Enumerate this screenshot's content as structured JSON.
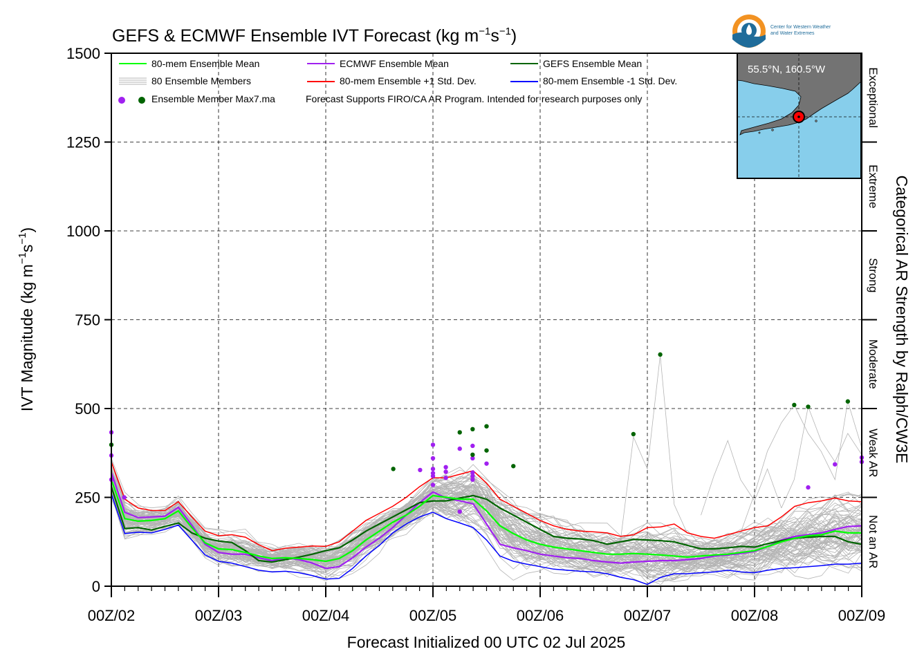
{
  "chart_data": {
    "type": "line",
    "title_main": "GEFS & ECMWF Ensemble IVT Forecast (kg m",
    "title_exp1": "−1",
    "title_mid": "s",
    "title_exp2": "−1",
    "title_end": ")",
    "xlabel": "Forecast Initialized 00 UTC 02 Jul 2025",
    "ylabel_main": "IVT Magnitude (kg m",
    "ylabel_exp1": "−1",
    "ylabel_mid": "s",
    "ylabel_exp2": "−1",
    "ylabel_end": ")",
    "right_label": "Categorical AR Strength by Ralph/CW3E",
    "ylim": [
      0,
      1500
    ],
    "xlim": [
      0,
      7
    ],
    "yticks": [
      0,
      250,
      500,
      750,
      1000,
      1250,
      1500
    ],
    "xtick_labels": [
      "00Z/02",
      "00Z/03",
      "00Z/04",
      "00Z/05",
      "00Z/06",
      "00Z/07",
      "00Z/08",
      "00Z/09"
    ],
    "grid": true,
    "categories": [
      {
        "label": "Not an AR",
        "from": 0,
        "to": 250
      },
      {
        "label": "Weak AR",
        "from": 250,
        "to": 500
      },
      {
        "label": "Moderate",
        "from": 500,
        "to": 750
      },
      {
        "label": "Strong",
        "from": 750,
        "to": 1000
      },
      {
        "label": "Extreme",
        "from": 1000,
        "to": 1250
      },
      {
        "label": "Exceptional",
        "from": 1250,
        "to": 1500
      }
    ],
    "legend": {
      "mean80": "80-mem Ensemble Mean",
      "members": "80 Ensemble Members",
      "ecmwf": "ECMWF Ensemble Mean",
      "plus": "80-mem Ensemble +1 Std. Dev.",
      "gefs": "GEFS Ensemble Mean",
      "minus": "80-mem Ensemble -1 Std. Dev.",
      "max7": "Ensemble Member Max7.ma",
      "note": "Forecast Supports FIRO/CA AR Program. Intended for research purposes only"
    },
    "colors": {
      "mean80": "#00ff00",
      "ecmwf": "#a020f0",
      "gefs": "#006400",
      "plus": "#ff0000",
      "minus": "#0000ff",
      "members": "#b4b4b4",
      "ocean": "#87ceeb",
      "land": "#737373",
      "marker": "#ff0000"
    },
    "series": [
      {
        "key": "plus",
        "name": "80-mem Ensemble +1 Std. Dev.",
        "x": [
          0,
          0.125,
          0.25,
          0.375,
          0.5,
          0.625,
          0.75,
          0.875,
          1,
          1.125,
          1.25,
          1.375,
          1.5,
          1.625,
          1.75,
          1.875,
          2,
          2.125,
          2.25,
          2.375,
          2.5,
          2.625,
          2.75,
          2.875,
          3,
          3.125,
          3.25,
          3.375,
          3.5,
          3.625,
          3.75,
          3.875,
          4,
          4.125,
          4.25,
          4.375,
          4.5,
          4.625,
          4.75,
          4.875,
          5,
          5.125,
          5.25,
          5.375,
          5.5,
          5.625,
          5.75,
          5.875,
          6,
          6.125,
          6.25,
          6.375,
          6.5,
          6.625,
          6.75,
          6.875,
          7
        ],
        "y": [
          350,
          245,
          220,
          213,
          213,
          238,
          195,
          155,
          142,
          145,
          138,
          117,
          100,
          107,
          110,
          113,
          112,
          125,
          155,
          185,
          205,
          225,
          250,
          280,
          305,
          305,
          315,
          325,
          290,
          245,
          225,
          205,
          185,
          170,
          160,
          155,
          153,
          150,
          140,
          145,
          165,
          167,
          175,
          150,
          140,
          135,
          145,
          155,
          165,
          170,
          195,
          225,
          235,
          240,
          248,
          240,
          238
        ]
      },
      {
        "key": "gefs",
        "name": "GEFS Ensemble Mean",
        "x": [
          0,
          0.125,
          0.25,
          0.375,
          0.5,
          0.625,
          0.75,
          0.875,
          1,
          1.125,
          1.25,
          1.375,
          1.5,
          1.625,
          1.75,
          1.875,
          2,
          2.125,
          2.25,
          2.375,
          2.5,
          2.625,
          2.75,
          2.875,
          3,
          3.125,
          3.25,
          3.375,
          3.5,
          3.625,
          3.75,
          3.875,
          4,
          4.125,
          4.25,
          4.375,
          4.5,
          4.625,
          4.75,
          4.875,
          5,
          5.125,
          5.25,
          5.375,
          5.5,
          5.625,
          5.75,
          5.875,
          6,
          6.125,
          6.25,
          6.375,
          6.5,
          6.625,
          6.75,
          6.875,
          7
        ],
        "y": [
          280,
          162,
          165,
          158,
          168,
          178,
          150,
          135,
          127,
          123,
          100,
          72,
          68,
          75,
          82,
          90,
          100,
          108,
          130,
          155,
          175,
          195,
          215,
          235,
          240,
          240,
          248,
          255,
          245,
          220,
          200,
          180,
          160,
          140,
          135,
          133,
          128,
          118,
          125,
          132,
          130,
          128,
          125,
          115,
          105,
          105,
          108,
          112,
          110,
          120,
          128,
          135,
          138,
          140,
          140,
          125,
          118
        ]
      },
      {
        "key": "mean80",
        "name": "80-mem Ensemble Mean",
        "x": [
          0,
          0.125,
          0.25,
          0.375,
          0.5,
          0.625,
          0.75,
          0.875,
          1,
          1.125,
          1.25,
          1.375,
          1.5,
          1.625,
          1.75,
          1.875,
          2,
          2.125,
          2.25,
          2.375,
          2.5,
          2.625,
          2.75,
          2.875,
          3,
          3.125,
          3.25,
          3.375,
          3.5,
          3.625,
          3.75,
          3.875,
          4,
          4.125,
          4.25,
          4.375,
          4.5,
          4.625,
          4.75,
          4.875,
          5,
          5.125,
          5.25,
          5.375,
          5.5,
          5.625,
          5.75,
          5.875,
          6,
          6.125,
          6.25,
          6.375,
          6.5,
          6.625,
          6.75,
          6.875,
          7
        ],
        "y": [
          300,
          190,
          183,
          185,
          190,
          212,
          165,
          122,
          105,
          103,
          95,
          85,
          78,
          80,
          78,
          75,
          70,
          78,
          100,
          130,
          155,
          180,
          200,
          225,
          255,
          250,
          245,
          245,
          212,
          170,
          148,
          130,
          118,
          110,
          105,
          100,
          95,
          90,
          90,
          92,
          90,
          88,
          85,
          82,
          85,
          88,
          90,
          95,
          100,
          112,
          125,
          135,
          142,
          145,
          155,
          150,
          150
        ]
      },
      {
        "key": "ecmwf",
        "name": "ECMWF Ensemble Mean",
        "x": [
          0,
          0.125,
          0.25,
          0.375,
          0.5,
          0.625,
          0.75,
          0.875,
          1,
          1.125,
          1.25,
          1.375,
          1.5,
          1.625,
          1.75,
          1.875,
          2,
          2.125,
          2.25,
          2.375,
          2.5,
          2.625,
          2.75,
          2.875,
          3,
          3.125,
          3.25,
          3.375,
          3.5,
          3.625,
          3.75,
          3.875,
          4,
          4.125,
          4.25,
          4.375,
          4.5,
          4.625,
          4.75,
          4.875,
          5,
          5.125,
          5.25,
          5.375,
          5.5,
          5.625,
          5.75,
          5.875,
          6,
          6.125,
          6.25,
          6.375,
          6.5,
          6.625,
          6.75,
          6.875,
          7
        ],
        "y": [
          320,
          208,
          193,
          195,
          197,
          222,
          172,
          118,
          95,
          90,
          90,
          80,
          72,
          80,
          75,
          65,
          50,
          55,
          80,
          110,
          135,
          165,
          200,
          235,
          265,
          248,
          240,
          232,
          175,
          118,
          108,
          100,
          90,
          85,
          80,
          78,
          72,
          68,
          65,
          68,
          70,
          72,
          72,
          75,
          78,
          85,
          88,
          92,
          98,
          112,
          130,
          140,
          145,
          150,
          160,
          168,
          170
        ]
      },
      {
        "key": "minus",
        "name": "80-mem Ensemble -1 Std. Dev.",
        "x": [
          0,
          0.125,
          0.25,
          0.375,
          0.5,
          0.625,
          0.75,
          0.875,
          1,
          1.125,
          1.25,
          1.375,
          1.5,
          1.625,
          1.75,
          1.875,
          2,
          2.125,
          2.25,
          2.375,
          2.5,
          2.625,
          2.75,
          2.875,
          3,
          3.125,
          3.25,
          3.375,
          3.5,
          3.625,
          3.75,
          3.875,
          4,
          4.125,
          4.25,
          4.375,
          4.5,
          4.625,
          4.75,
          4.875,
          5,
          5.125,
          5.25,
          5.375,
          5.5,
          5.625,
          5.75,
          5.875,
          6,
          6.125,
          6.25,
          6.375,
          6.5,
          6.625,
          6.75,
          6.875,
          7
        ],
        "y": [
          260,
          148,
          152,
          150,
          160,
          172,
          130,
          88,
          70,
          65,
          55,
          45,
          40,
          42,
          38,
          30,
          20,
          22,
          50,
          85,
          115,
          150,
          175,
          195,
          208,
          190,
          178,
          165,
          130,
          85,
          70,
          62,
          55,
          48,
          45,
          42,
          40,
          35,
          25,
          18,
          5,
          25,
          35,
          35,
          38,
          40,
          45,
          40,
          38,
          45,
          50,
          52,
          55,
          58,
          62,
          62,
          65
        ]
      }
    ],
    "max7_gefs": [
      {
        "x": 0,
        "y": 398
      },
      {
        "x": 2.63,
        "y": 330
      },
      {
        "x": 3.25,
        "y": 433
      },
      {
        "x": 3.37,
        "y": 442
      },
      {
        "x": 3.37,
        "y": 370
      },
      {
        "x": 3.5,
        "y": 450
      },
      {
        "x": 3.5,
        "y": 382
      },
      {
        "x": 3.75,
        "y": 338
      },
      {
        "x": 4.87,
        "y": 428
      },
      {
        "x": 5.12,
        "y": 652
      },
      {
        "x": 6.37,
        "y": 510
      },
      {
        "x": 6.5,
        "y": 505
      },
      {
        "x": 6.87,
        "y": 520
      }
    ],
    "max7_ecmwf": [
      {
        "x": 0,
        "y": 433
      },
      {
        "x": 0,
        "y": 368
      },
      {
        "x": 0,
        "y": 300
      },
      {
        "x": 0.12,
        "y": 250
      },
      {
        "x": 2.88,
        "y": 327
      },
      {
        "x": 3,
        "y": 398
      },
      {
        "x": 3,
        "y": 360
      },
      {
        "x": 3,
        "y": 330
      },
      {
        "x": 3,
        "y": 318
      },
      {
        "x": 3,
        "y": 310
      },
      {
        "x": 3,
        "y": 285
      },
      {
        "x": 3.12,
        "y": 335
      },
      {
        "x": 3.12,
        "y": 322
      },
      {
        "x": 3.12,
        "y": 305
      },
      {
        "x": 3.25,
        "y": 387
      },
      {
        "x": 3.25,
        "y": 210
      },
      {
        "x": 3.37,
        "y": 395
      },
      {
        "x": 3.37,
        "y": 360
      },
      {
        "x": 3.37,
        "y": 320
      },
      {
        "x": 3.37,
        "y": 310
      },
      {
        "x": 3.37,
        "y": 300
      },
      {
        "x": 3.5,
        "y": 345
      },
      {
        "x": 6.5,
        "y": 278
      },
      {
        "x": 6.75,
        "y": 343
      },
      {
        "x": 7,
        "y": 362
      },
      {
        "x": 7,
        "y": 350
      }
    ],
    "inset": {
      "location_label": "55.5°N, 160.5°W",
      "logo_line1": "Center for Western Weather",
      "logo_line2": "and Water Extremes"
    }
  }
}
